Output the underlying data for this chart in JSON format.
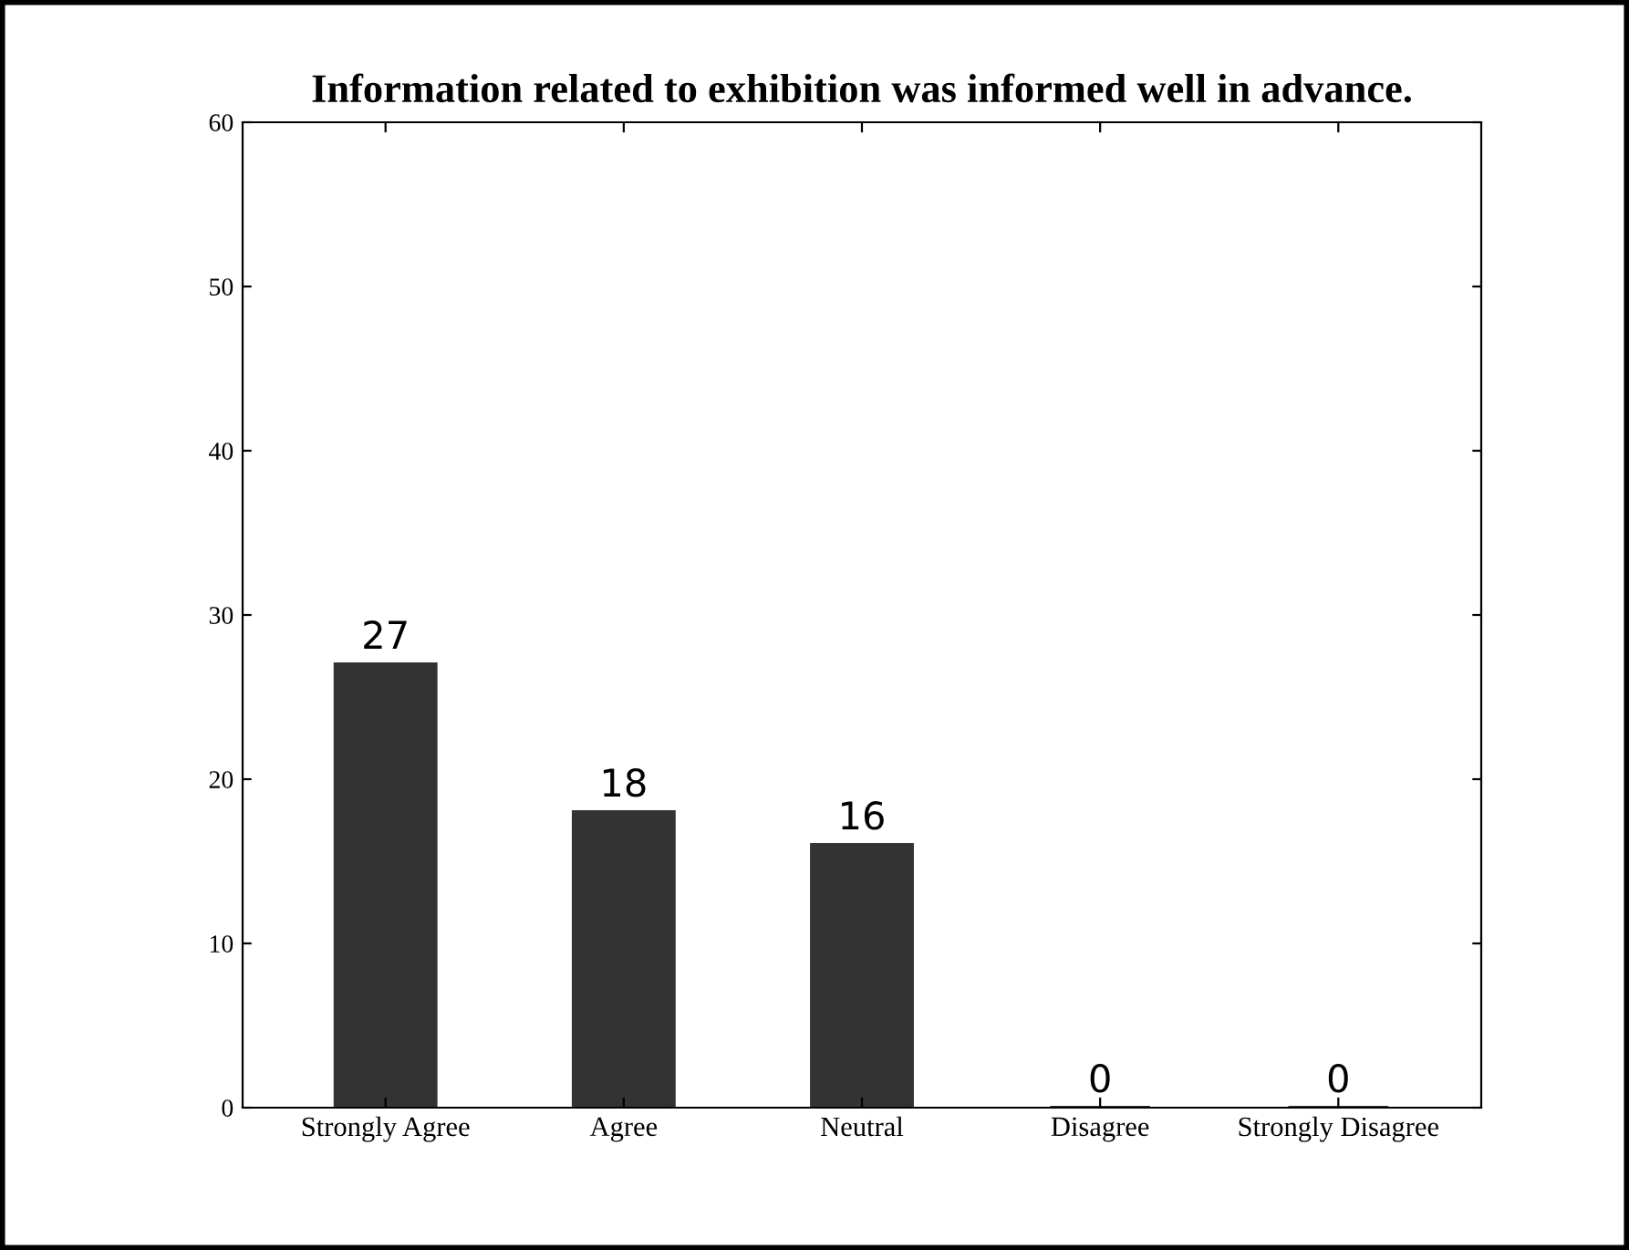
{
  "chart_data": {
    "type": "bar",
    "title": "Information related to exhibition was informed well in advance.",
    "categories": [
      "Strongly Agree",
      "Agree",
      "Neutral",
      "Disagree",
      "Strongly Disagree"
    ],
    "values": [
      27,
      18,
      16,
      0,
      0
    ],
    "color": "#333333",
    "ylim": [
      0,
      60
    ],
    "yticks": [
      0,
      10,
      20,
      30,
      40,
      50,
      60
    ],
    "grid": false,
    "data_labels": true
  }
}
